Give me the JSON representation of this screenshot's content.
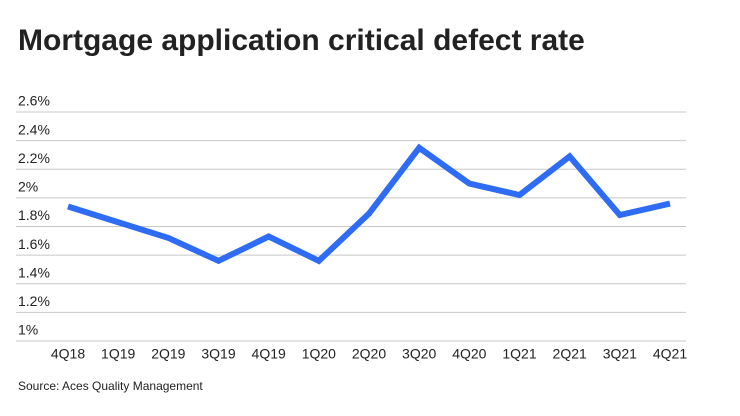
{
  "chart_data": {
    "type": "line",
    "title": "Mortgage application critical defect rate",
    "source": "Source: Aces Quality Management",
    "categories": [
      "4Q18",
      "1Q19",
      "2Q19",
      "3Q19",
      "4Q19",
      "1Q20",
      "2Q20",
      "3Q20",
      "4Q20",
      "1Q21",
      "2Q21",
      "3Q21",
      "4Q21"
    ],
    "series": [
      {
        "name": "Critical defect rate",
        "color": "#2e6cf5",
        "values": [
          1.94,
          1.83,
          1.72,
          1.56,
          1.73,
          1.56,
          1.89,
          2.35,
          2.1,
          2.02,
          2.29,
          1.88,
          1.96
        ]
      }
    ],
    "ylim": [
      1,
      2.6
    ],
    "yticks": [
      {
        "value": 1,
        "label": "1%"
      },
      {
        "value": 1.2,
        "label": "1.2%"
      },
      {
        "value": 1.4,
        "label": "1.4%"
      },
      {
        "value": 1.6,
        "label": "1.6%"
      },
      {
        "value": 1.8,
        "label": "1.8%"
      },
      {
        "value": 2,
        "label": "2%"
      },
      {
        "value": 2.2,
        "label": "2.2%"
      },
      {
        "value": 2.4,
        "label": "2.4%"
      },
      {
        "value": 2.6,
        "label": "2.6%"
      }
    ],
    "grid": true
  }
}
